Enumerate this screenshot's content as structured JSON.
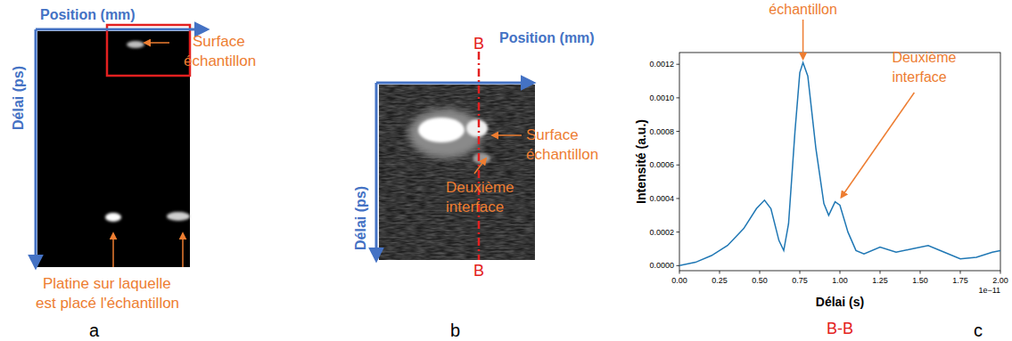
{
  "panels": {
    "a": {
      "panel_label": "a",
      "x_label": "Position (mm)",
      "y_label": "Délai (ps)",
      "surface_label": [
        "Surface",
        "échantillon"
      ],
      "stage_label": [
        "Platine sur laquelle",
        "est placé l'échantillon"
      ]
    },
    "b": {
      "panel_label": "b",
      "x_label": "Position (mm)",
      "y_label": "Délai (ps)",
      "cut_label": "B",
      "surface_label": [
        "Surface",
        "échantillon"
      ],
      "interface_label": [
        "Deuxième",
        "interface"
      ]
    }
  },
  "chart_data": {
    "type": "line",
    "panel_label": "c",
    "title": "B-B",
    "x_label": "Délai (s)",
    "y_label": "Intensité (a.u.)",
    "x_offset_label": "1e−11",
    "x": [
      0,
      1e-12,
      2e-12,
      3e-12,
      4e-12,
      4.8e-12,
      5.3e-12,
      5.7e-12,
      6.2e-12,
      6.5e-12,
      6.8e-12,
      7.2e-12,
      7.5e-12,
      7.7e-12,
      8e-12,
      8.5e-12,
      9e-12,
      9.3e-12,
      9.7e-12,
      1e-11,
      1.05e-11,
      1.1e-11,
      1.15e-11,
      1.25e-11,
      1.35e-11,
      1.45e-11,
      1.55e-11,
      1.65e-11,
      1.75e-11,
      1.85e-11,
      1.95e-11,
      2e-11
    ],
    "series": [
      {
        "name": "B-B",
        "color": "#1f77b4",
        "line_style": "solid",
        "values": [
          0,
          2e-05,
          6e-05,
          0.00012,
          0.00022,
          0.00034,
          0.00039,
          0.00034,
          0.00015,
          9e-05,
          0.00025,
          0.0008,
          0.00115,
          0.00121,
          0.00113,
          0.0007,
          0.00037,
          0.0003,
          0.00038,
          0.00036,
          0.0002,
          9e-05,
          7e-05,
          0.00011,
          8e-05,
          0.0001,
          0.00012,
          8e-05,
          4e-05,
          5e-05,
          8e-05,
          9e-05
        ]
      }
    ],
    "xlim": [
      0,
      2e-11
    ],
    "ylim": [
      -3e-05,
      0.00127
    ],
    "xticks": [
      {
        "value": 0,
        "label": "0.00"
      },
      {
        "value": 2.5e-12,
        "label": "0.25"
      },
      {
        "value": 5e-12,
        "label": "0.50"
      },
      {
        "value": 7.5e-12,
        "label": "0.75"
      },
      {
        "value": 1e-11,
        "label": "1.00"
      },
      {
        "value": 1.25e-11,
        "label": "1.25"
      },
      {
        "value": 1.5e-11,
        "label": "1.50"
      },
      {
        "value": 1.75e-11,
        "label": "1.75"
      },
      {
        "value": 2e-11,
        "label": "2.00"
      }
    ],
    "yticks": [
      {
        "value": 0,
        "label": "0.0000"
      },
      {
        "value": 0.0002,
        "label": "0.0002"
      },
      {
        "value": 0.0004,
        "label": "0.0004"
      },
      {
        "value": 0.0006,
        "label": "0.0006"
      },
      {
        "value": 0.0008,
        "label": "0.0008"
      },
      {
        "value": 0.001,
        "label": "0.0010"
      },
      {
        "value": 0.0012,
        "label": "0.0012"
      }
    ],
    "grid": false,
    "annotations": [
      {
        "lines": [
          "échantillon"
        ],
        "x": 7.7e-12,
        "y": 0.00121
      },
      {
        "lines": [
          "Deuxième",
          "interface"
        ],
        "x": 9.8e-12,
        "y": 0.00038
      }
    ]
  }
}
